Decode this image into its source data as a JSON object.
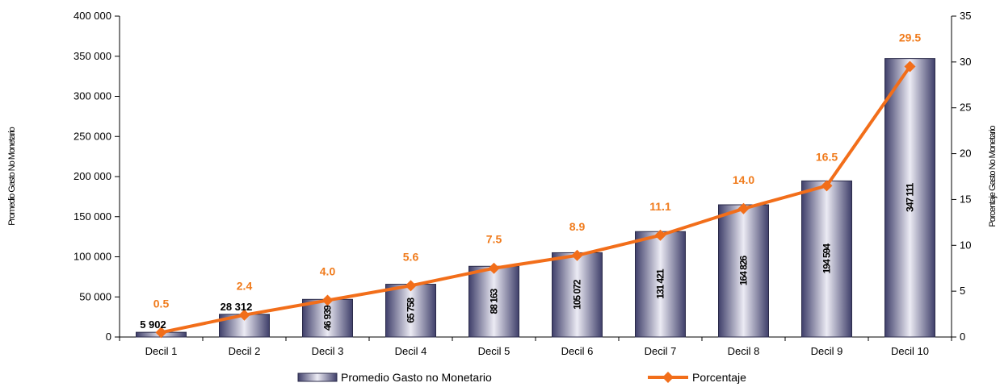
{
  "chart_data": {
    "type": "bar+line",
    "categories": [
      "Decil 1",
      "Decil 2",
      "Decil 3",
      "Decil 4",
      "Decil 5",
      "Decil 6",
      "Decil 7",
      "Decil 8",
      "Decil 9",
      "Decil 10"
    ],
    "series": [
      {
        "name": "Promedio Gasto no Monetario",
        "type": "bar",
        "axis": "left",
        "values": [
          5902,
          28312,
          46939,
          65758,
          88163,
          105072,
          131421,
          164826,
          194594,
          347111
        ],
        "labels": [
          "5 902",
          "28 312",
          "46 939",
          "65 758",
          "88 163",
          "105 072",
          "131 421",
          "164 826",
          "194 594",
          "347 111"
        ]
      },
      {
        "name": "Porcentaje",
        "type": "line",
        "axis": "right",
        "values": [
          0.5,
          2.4,
          4.0,
          5.6,
          7.5,
          8.9,
          11.1,
          14.0,
          16.5,
          29.5
        ],
        "labels": [
          "0.5",
          "2.4",
          "4.0",
          "5.6",
          "7.5",
          "8.9",
          "11.1",
          "14.0",
          "16.5",
          "29.5"
        ]
      }
    ],
    "ylabel_left": "Promedio Gasto No Monetario",
    "ylabel_right": "Porcentaje Gasto No Monetario",
    "ylim_left": [
      0,
      400000
    ],
    "ylim_right": [
      0,
      35
    ],
    "yticks_left": [
      "0",
      "50 000",
      "100 000",
      "150 000",
      "200 000",
      "250 000",
      "300 000",
      "350 000",
      "400 000"
    ],
    "yticks_right": [
      "0",
      "5",
      "10",
      "15",
      "20",
      "25",
      "30",
      "35"
    ],
    "legend_position": "bottom",
    "grid": false,
    "colors": {
      "bar_dark": "#3f3f6a",
      "bar_light": "#ecebf4",
      "line": "#f26e1a",
      "label_orange": "#f07b1c"
    }
  }
}
